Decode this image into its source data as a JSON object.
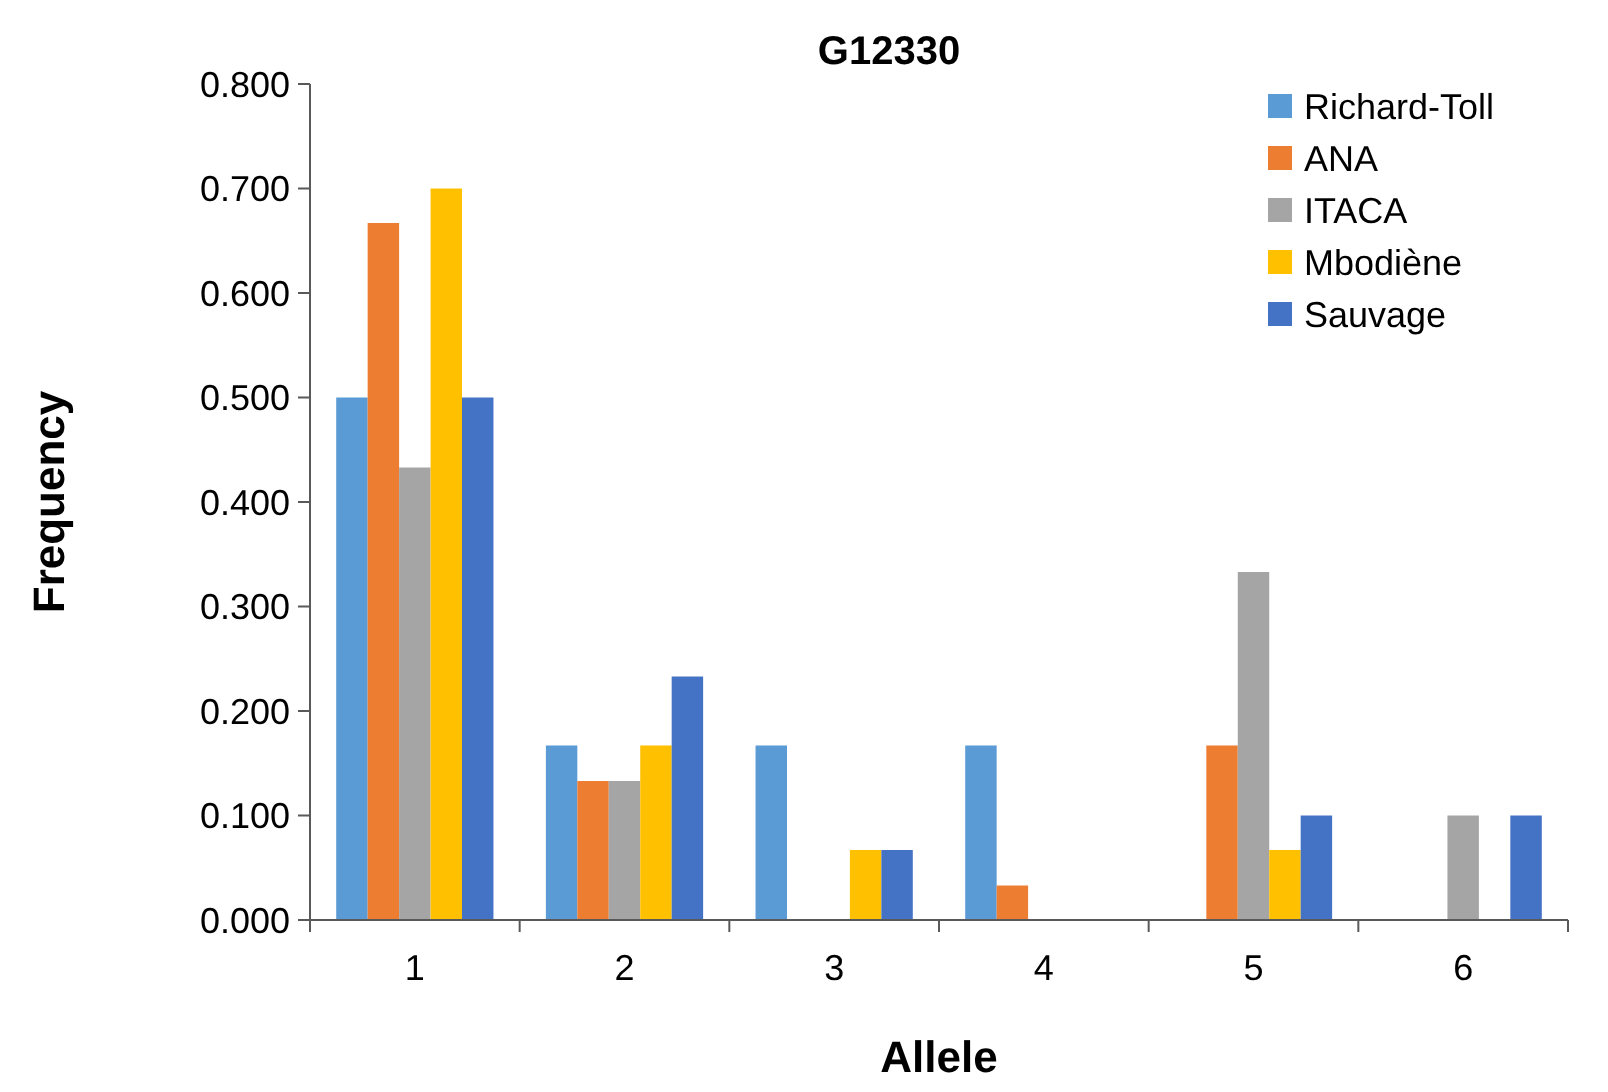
{
  "chart_data": {
    "type": "bar",
    "title": "G12330",
    "xlabel": "Allele",
    "ylabel": "Frequency",
    "categories": [
      "1",
      "2",
      "3",
      "4",
      "5",
      "6"
    ],
    "series": [
      {
        "name": "Richard-Toll",
        "color": "#5b9bd5",
        "values": [
          0.5,
          0.167,
          0.167,
          0.167,
          0,
          0
        ]
      },
      {
        "name": "ANA",
        "color": "#ed7d31",
        "values": [
          0.667,
          0.133,
          0,
          0.033,
          0.167,
          0
        ]
      },
      {
        "name": "ITACA",
        "color": "#a5a5a5",
        "values": [
          0.433,
          0.133,
          0,
          0,
          0.333,
          0.1
        ]
      },
      {
        "name": "Mbodiène",
        "color": "#ffc000",
        "values": [
          0.7,
          0.167,
          0.067,
          0,
          0.067,
          0
        ]
      },
      {
        "name": "Sauvage",
        "color": "#4472c4",
        "values": [
          0.5,
          0.233,
          0.067,
          0,
          0.1,
          0.1
        ]
      }
    ],
    "ylim": [
      0,
      0.8
    ],
    "yticks": [
      {
        "value": 0,
        "label": "0.000"
      },
      {
        "value": 0.1,
        "label": "0.100"
      },
      {
        "value": 0.2,
        "label": "0.200"
      },
      {
        "value": 0.3,
        "label": "0.300"
      },
      {
        "value": 0.4,
        "label": "0.400"
      },
      {
        "value": 0.5,
        "label": "0.500"
      },
      {
        "value": 0.6,
        "label": "0.600"
      },
      {
        "value": 0.7,
        "label": "0.700"
      },
      {
        "value": 0.8,
        "label": "0.800"
      }
    ],
    "legend": "top right",
    "grid": false
  }
}
